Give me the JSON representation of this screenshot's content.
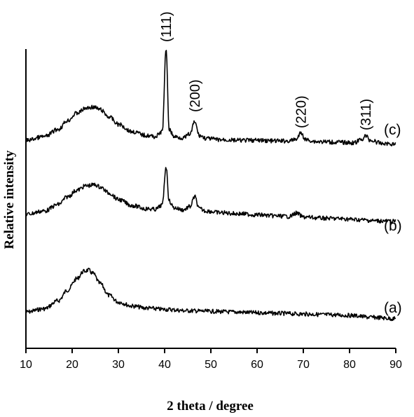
{
  "chart_data": {
    "type": "line",
    "xlabel": "2 theta / degree",
    "ylabel": "Relative intensity",
    "xlim": [
      10,
      90
    ],
    "x_ticks": [
      "10",
      "20",
      "30",
      "40",
      "50",
      "60",
      "70",
      "80",
      "90"
    ],
    "y_ticks_shown": false,
    "grid": false,
    "series": [
      {
        "name": "(a)",
        "x": [
          10,
          14,
          17,
          19,
          21,
          22.5,
          23.5,
          24.5,
          26,
          28,
          30,
          33,
          36,
          40,
          45,
          50,
          55,
          60,
          65,
          70,
          75,
          80,
          85,
          90
        ],
        "y": [
          0.05,
          0.1,
          0.22,
          0.38,
          0.55,
          0.66,
          0.68,
          0.63,
          0.48,
          0.3,
          0.2,
          0.14,
          0.11,
          0.09,
          0.07,
          0.06,
          0.05,
          0.04,
          0.03,
          0.02,
          0.01,
          0.0,
          -0.03,
          -0.05
        ]
      },
      {
        "name": "(b)",
        "x": [
          10,
          14,
          17,
          19,
          21,
          23,
          25,
          26,
          28,
          30,
          33,
          36,
          38,
          39.5,
          40.3,
          41,
          42,
          44,
          45.5,
          46.5,
          47.5,
          49,
          52,
          56,
          60,
          64,
          67,
          68.5,
          70,
          74,
          78,
          82,
          86,
          90
        ],
        "y": [
          0.08,
          0.14,
          0.26,
          0.4,
          0.52,
          0.6,
          0.62,
          0.58,
          0.47,
          0.35,
          0.24,
          0.18,
          0.17,
          0.25,
          0.95,
          0.32,
          0.2,
          0.16,
          0.22,
          0.4,
          0.18,
          0.14,
          0.11,
          0.09,
          0.07,
          0.05,
          0.04,
          0.1,
          0.03,
          0.01,
          0.0,
          -0.02,
          -0.04,
          -0.05
        ]
      },
      {
        "name": "(c)",
        "x": [
          10,
          14,
          17,
          19,
          21,
          23,
          24.5,
          26,
          28,
          30,
          33,
          36,
          38,
          39.5,
          40.3,
          41,
          42,
          44,
          45.5,
          46.5,
          47.5,
          49,
          52,
          56,
          60,
          64,
          67,
          68.5,
          69.5,
          70.5,
          73,
          77,
          81,
          82.5,
          83.5,
          84.5,
          87,
          90
        ],
        "y": [
          0.02,
          0.08,
          0.2,
          0.34,
          0.46,
          0.54,
          0.56,
          0.52,
          0.4,
          0.28,
          0.16,
          0.1,
          0.08,
          0.16,
          1.48,
          0.2,
          0.08,
          0.06,
          0.12,
          0.32,
          0.1,
          0.05,
          0.03,
          0.02,
          0.02,
          0.01,
          0.01,
          0.04,
          0.14,
          0.03,
          0.0,
          -0.01,
          -0.02,
          0.03,
          0.09,
          0.02,
          -0.03,
          -0.04
        ]
      }
    ],
    "annotations": [
      {
        "text": "(111)",
        "x": 40.3,
        "series": "(c)"
      },
      {
        "text": "(200)",
        "x": 46.5,
        "series": "(c)"
      },
      {
        "text": "(220)",
        "x": 69.5,
        "series": "(c)"
      },
      {
        "text": "(311)",
        "x": 83.5,
        "series": "(c)"
      }
    ]
  }
}
